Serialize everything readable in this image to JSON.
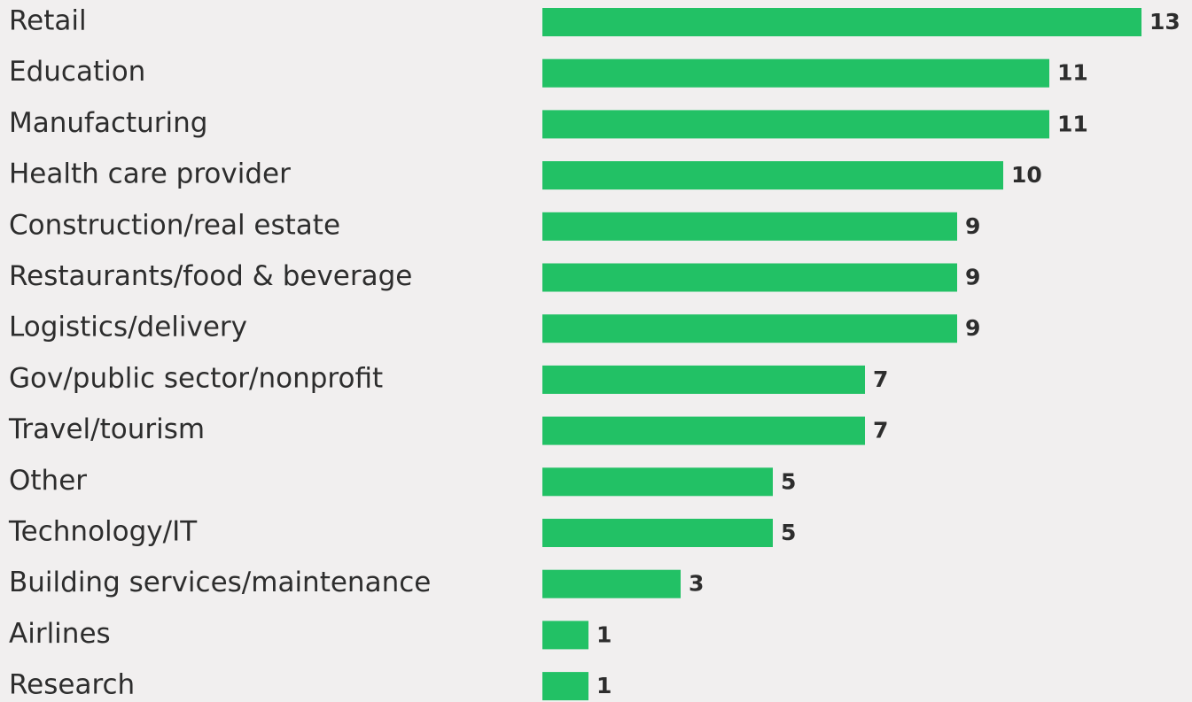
{
  "chart_data": {
    "type": "bar",
    "orientation": "horizontal",
    "categories": [
      "Retail",
      "Education",
      "Manufacturing",
      "Health care provider",
      "Construction/real estate",
      "Restaurants/food & beverage",
      "Logistics/delivery",
      "Gov/public sector/nonprofit",
      "Travel/tourism",
      "Other",
      "Technology/IT",
      "Building services/maintenance",
      "Airlines",
      "Research"
    ],
    "values": [
      13,
      11,
      11,
      10,
      9,
      9,
      9,
      7,
      7,
      5,
      5,
      3,
      1,
      1
    ],
    "color": "#22c165"
  }
}
